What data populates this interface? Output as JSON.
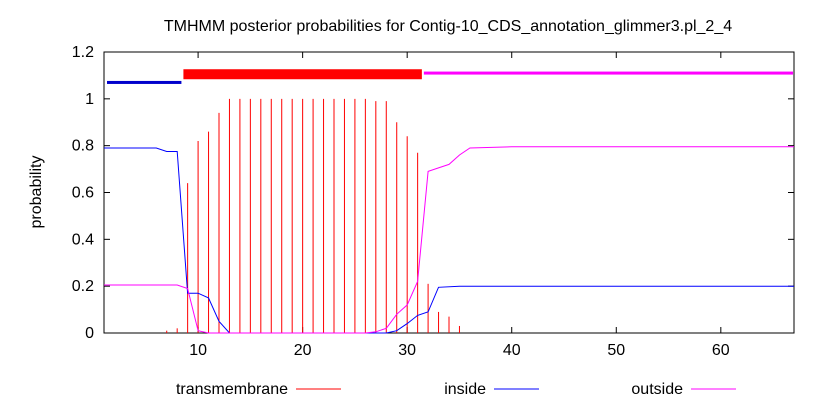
{
  "chart_data": {
    "type": "line",
    "title": "TMHMM posterior probabilities for Contig-10_CDS_annotation_glimmer3.pl_2_4",
    "xlabel": "",
    "ylabel": "probability",
    "xlim": [
      1,
      67
    ],
    "ylim": [
      0,
      1.2
    ],
    "x_ticks": [
      10,
      20,
      30,
      40,
      50,
      60
    ],
    "y_ticks": [
      0,
      0.2,
      0.4,
      0.6,
      0.8,
      1,
      1.2
    ],
    "x_tick_labels": [
      "10",
      "20",
      "30",
      "40",
      "50",
      "60"
    ],
    "y_tick_labels": [
      "0",
      "0.2",
      "0.4",
      "0.6",
      "0.8",
      "1",
      "1.2"
    ],
    "grid": false,
    "legend_position": "bottom",
    "colors": {
      "transmembrane": "#ff0000",
      "inside": "#0000ff",
      "outside": "#ff00ff"
    },
    "topology": [
      {
        "label": "inside",
        "start": 1,
        "end": 8,
        "color": "#0000cc"
      },
      {
        "label": "transmembrane",
        "start": 9,
        "end": 31,
        "color": "#ff0000"
      },
      {
        "label": "outside",
        "start": 32,
        "end": 67,
        "color": "#ff00ff"
      }
    ],
    "series": [
      {
        "name": "transmembrane",
        "style": "impulses",
        "x": [
          7,
          8,
          9,
          10,
          11,
          12,
          13,
          14,
          15,
          16,
          17,
          18,
          19,
          20,
          21,
          22,
          23,
          24,
          25,
          26,
          27,
          28,
          29,
          30,
          31,
          32,
          33,
          34,
          35
        ],
        "values": [
          0.01,
          0.02,
          0.64,
          0.82,
          0.86,
          0.94,
          1.0,
          1.0,
          1.0,
          1.0,
          1.0,
          1.0,
          1.0,
          1.0,
          1.0,
          1.0,
          1.0,
          1.0,
          1.0,
          1.0,
          0.99,
          0.99,
          0.9,
          0.84,
          0.77,
          0.21,
          0.09,
          0.07,
          0.03
        ]
      },
      {
        "name": "inside",
        "style": "line",
        "x": [
          1,
          2,
          3,
          4,
          5,
          6,
          7,
          8,
          9,
          10,
          11,
          12,
          13,
          14,
          20,
          25,
          28,
          29,
          30,
          31,
          32,
          33,
          35,
          40,
          45,
          50,
          55,
          60,
          65,
          67
        ],
        "values": [
          0.79,
          0.79,
          0.79,
          0.79,
          0.79,
          0.79,
          0.775,
          0.775,
          0.17,
          0.17,
          0.15,
          0.05,
          0.0,
          0.0,
          0.0,
          0.0,
          0.0,
          0.01,
          0.04,
          0.075,
          0.09,
          0.195,
          0.2,
          0.2,
          0.2,
          0.2,
          0.2,
          0.2,
          0.2,
          0.2
        ]
      },
      {
        "name": "outside",
        "style": "line",
        "x": [
          1,
          2,
          3,
          4,
          5,
          6,
          7,
          8,
          9,
          10,
          11,
          12,
          14,
          20,
          26,
          27,
          28,
          29,
          30,
          31,
          32,
          33,
          34,
          35,
          36,
          40,
          45,
          50,
          55,
          60,
          65,
          67
        ],
        "values": [
          0.205,
          0.205,
          0.205,
          0.205,
          0.205,
          0.205,
          0.205,
          0.205,
          0.19,
          0.01,
          0.0,
          0.0,
          0.0,
          0.0,
          0.0,
          0.005,
          0.02,
          0.08,
          0.12,
          0.22,
          0.69,
          0.705,
          0.72,
          0.76,
          0.79,
          0.795,
          0.795,
          0.795,
          0.795,
          0.795,
          0.795,
          0.795
        ]
      }
    ]
  }
}
